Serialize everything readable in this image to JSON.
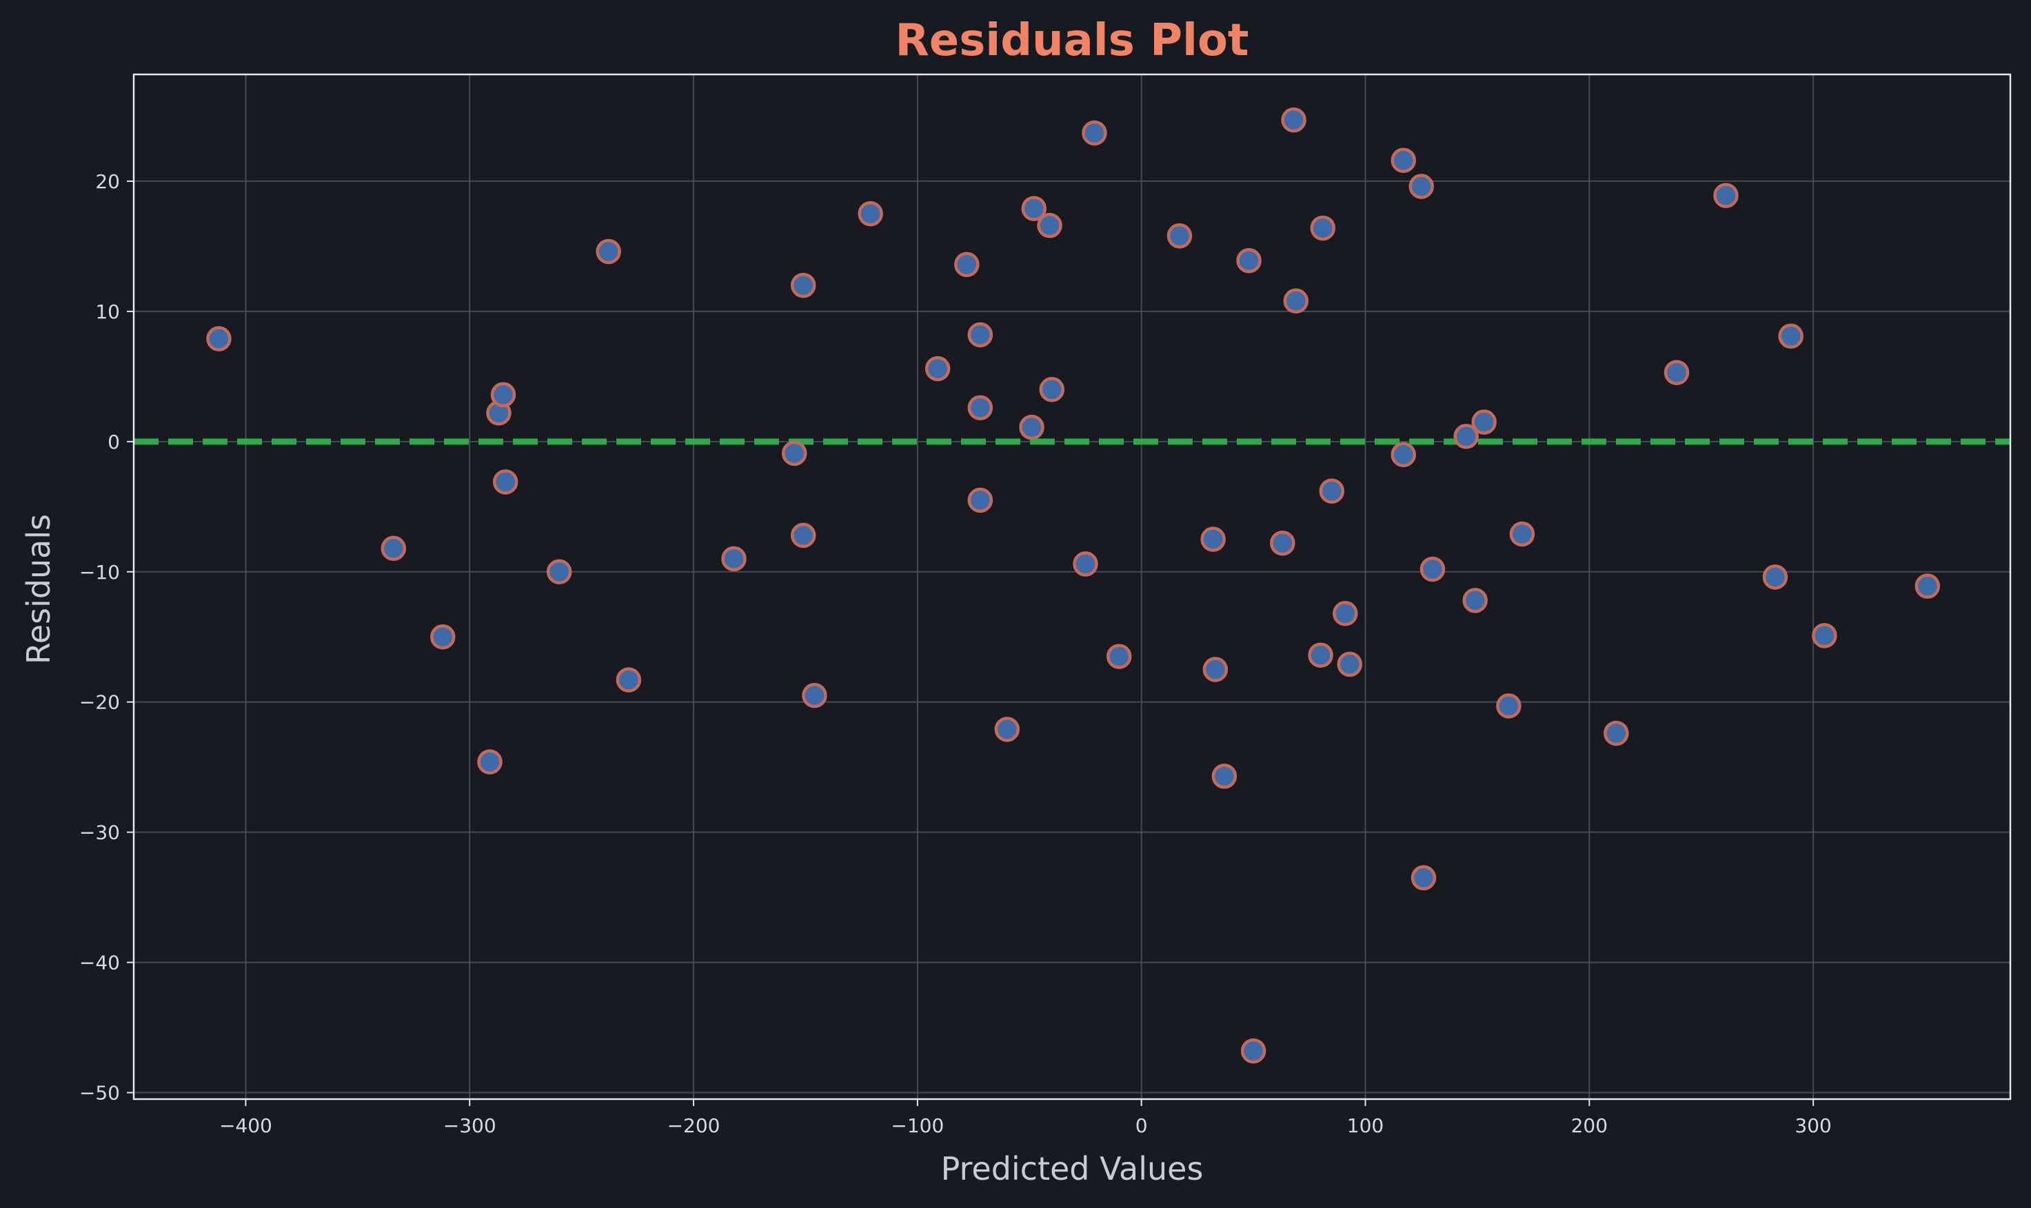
{
  "chart_data": {
    "type": "scatter",
    "title": "Residuals Plot",
    "xlabel": "Predicted Values",
    "ylabel": "Residuals",
    "xlim": [
      -450,
      388
    ],
    "ylim": [
      -50.5,
      28.2
    ],
    "xticks": [
      -400,
      -300,
      -200,
      -100,
      0,
      100,
      200,
      300
    ],
    "yticks": [
      -50,
      -40,
      -30,
      -20,
      -10,
      0,
      10,
      20
    ],
    "grid": true,
    "reference_line": {
      "y": 0,
      "style": "dashed",
      "color": "#2ea84a"
    },
    "colors": {
      "background": "#161a21",
      "point_fill": "#3f6aa8",
      "point_edge": "#c46a5a",
      "title": "#f28466",
      "grid": "#4a4f58",
      "axes": "#e6e8eb"
    },
    "x": [
      -412,
      -334,
      -312,
      -291,
      -287,
      -285,
      -284,
      -260,
      -238,
      -229,
      -182,
      -155,
      -151,
      -151,
      -146,
      -121,
      -91,
      -78,
      -72,
      -72,
      -72,
      -60,
      -49,
      -48,
      -41,
      -40,
      -25,
      -21,
      -10,
      17,
      32,
      33,
      37,
      48,
      63,
      68,
      69,
      80,
      81,
      85,
      91,
      93,
      117,
      117,
      125,
      126,
      130,
      145,
      149,
      153,
      164,
      170,
      212,
      239,
      261,
      283,
      290,
      305,
      351,
      50
    ],
    "y": [
      7.9,
      -8.2,
      -15.0,
      -24.6,
      2.2,
      3.6,
      -3.1,
      -10.0,
      14.6,
      -18.3,
      -9.0,
      -0.9,
      12.0,
      -7.2,
      -19.5,
      17.5,
      5.6,
      13.6,
      8.2,
      2.6,
      -4.5,
      -22.1,
      1.1,
      17.9,
      16.6,
      4.0,
      -9.4,
      23.7,
      -16.5,
      15.8,
      -7.5,
      -17.5,
      -25.7,
      13.9,
      -7.8,
      24.7,
      10.8,
      -16.4,
      16.4,
      -3.8,
      -13.2,
      -17.1,
      21.6,
      -1.0,
      19.6,
      -33.5,
      -9.8,
      0.4,
      -12.2,
      1.5,
      -20.3,
      -7.1,
      -22.4,
      5.3,
      18.9,
      -10.4,
      8.1,
      -14.9,
      -11.1,
      -46.8
    ]
  }
}
